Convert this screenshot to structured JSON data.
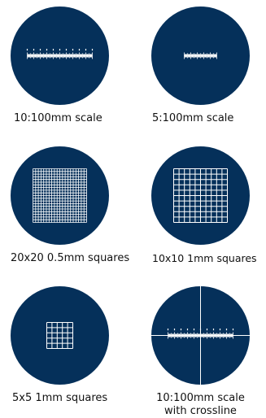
{
  "colors": {
    "disc": "#05305a",
    "lines": "#ffffff",
    "caption": "#111111"
  },
  "items": [
    {
      "caption": "10:100mm scale",
      "icon": "reticle-scale-10-100-icon"
    },
    {
      "caption": "5:100mm scale",
      "icon": "reticle-scale-5-100-icon"
    },
    {
      "caption": "20x20 0.5mm squares",
      "icon": "reticle-grid-20x20-icon"
    },
    {
      "caption": "10x10 1mm squares",
      "icon": "reticle-grid-10x10-icon"
    },
    {
      "caption": "5x5 1mm squares",
      "icon": "reticle-grid-5x5-icon"
    },
    {
      "caption_line1": "10:100mm scale",
      "caption_line2": "with crossline",
      "icon": "reticle-scale-crossline-icon"
    }
  ]
}
